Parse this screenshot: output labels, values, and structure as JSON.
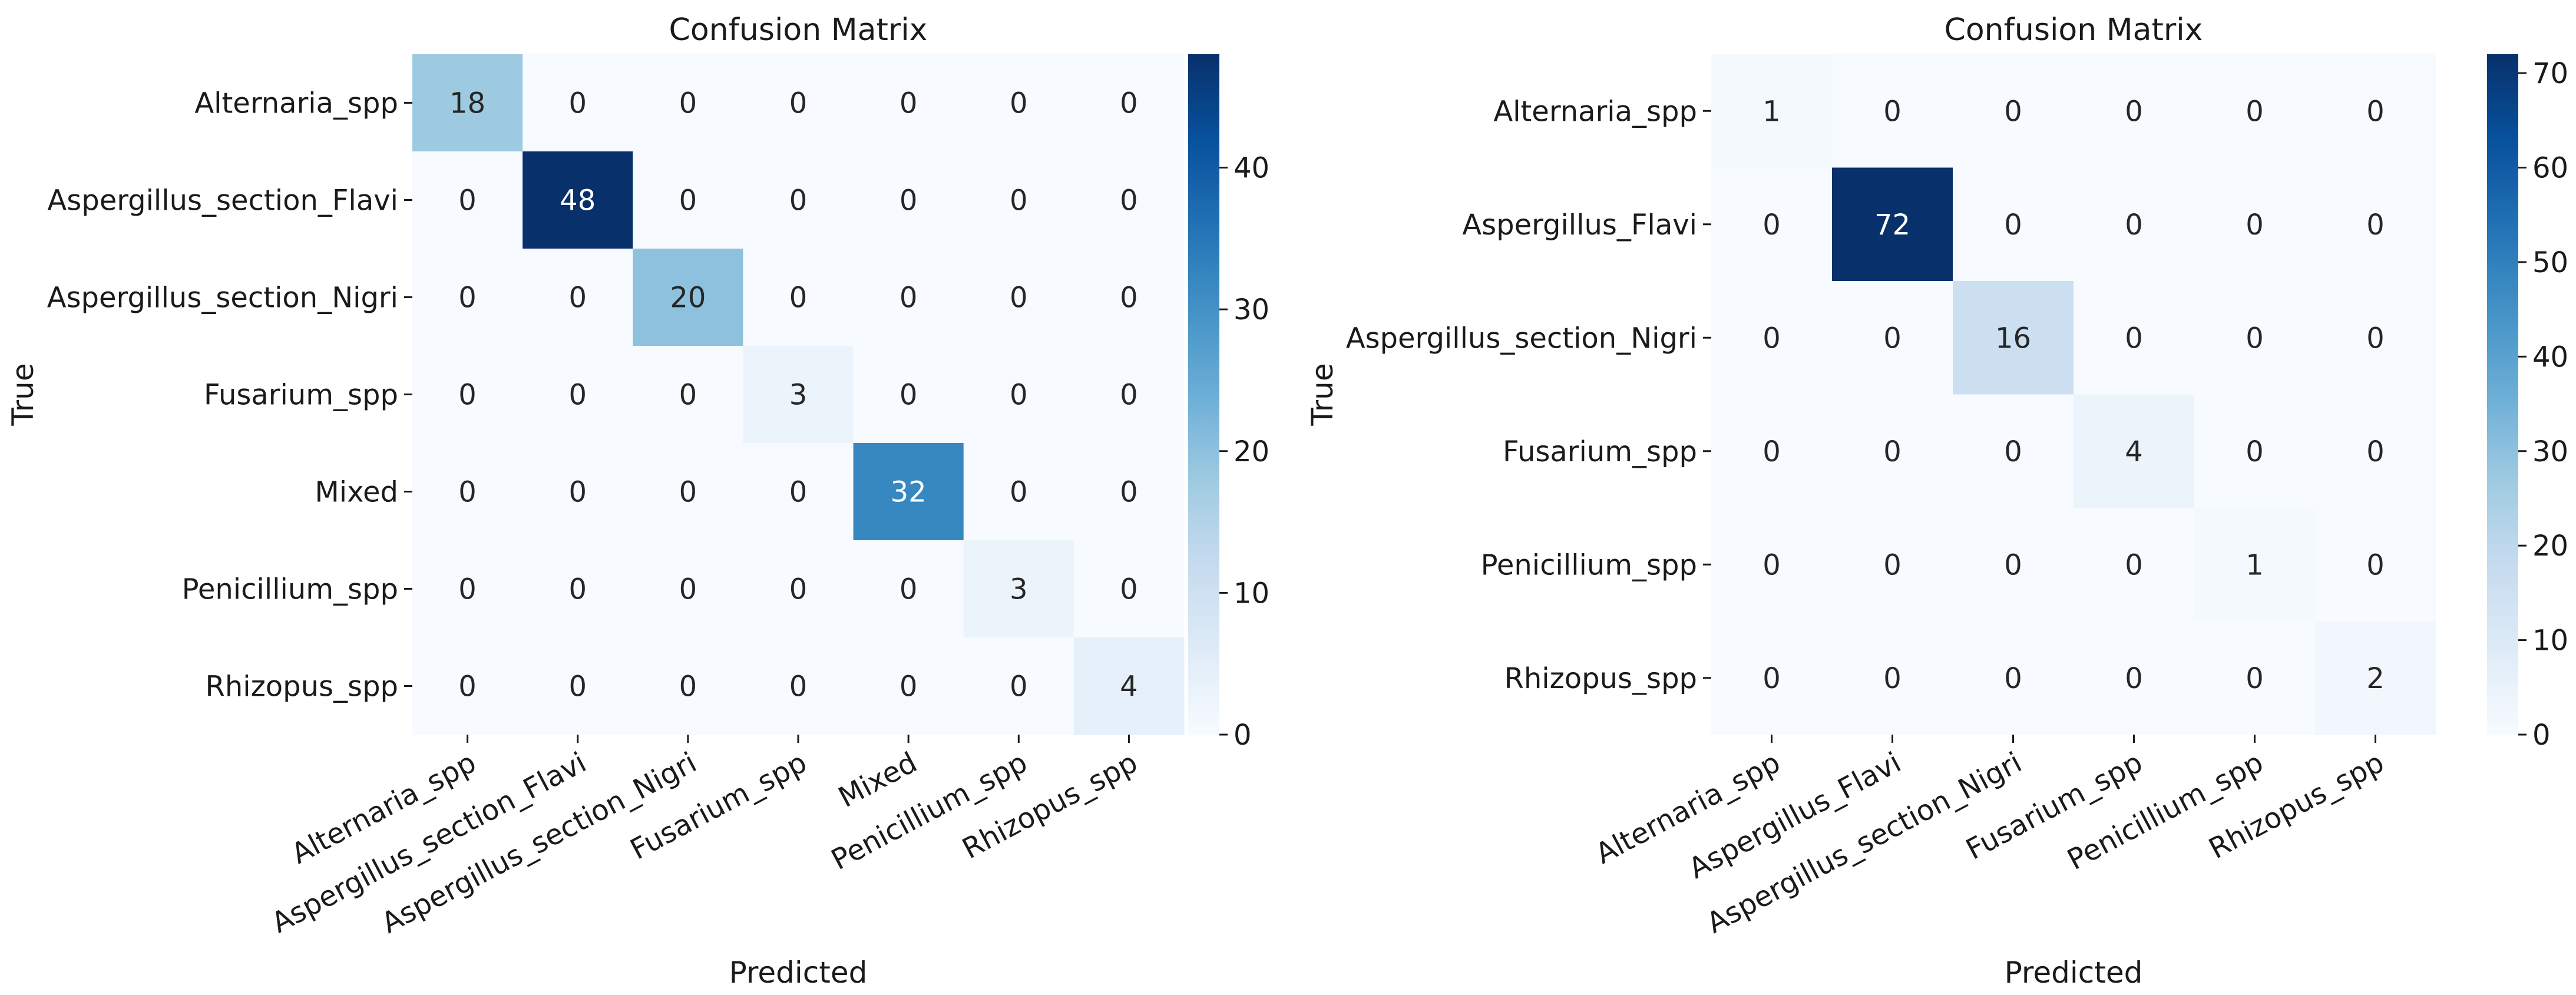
{
  "chart_data": [
    {
      "type": "heatmap",
      "title": "Confusion Matrix",
      "xlabel": "Predicted",
      "ylabel": "True",
      "x_categories": [
        "Alternaria_spp",
        "Aspergillus_section_Flavi",
        "Aspergillus_section_Nigri",
        "Fusarium_spp",
        "Mixed",
        "Penicillium_spp",
        "Rhizopus_spp"
      ],
      "y_categories": [
        "Alternaria_spp",
        "Aspergillus_section_Flavi",
        "Aspergillus_section_Nigri",
        "Fusarium_spp",
        "Mixed",
        "Penicillium_spp",
        "Rhizopus_spp"
      ],
      "values": [
        [
          18,
          0,
          0,
          0,
          0,
          0,
          0
        ],
        [
          0,
          48,
          0,
          0,
          0,
          0,
          0
        ],
        [
          0,
          0,
          20,
          0,
          0,
          0,
          0
        ],
        [
          0,
          0,
          0,
          3,
          0,
          0,
          0
        ],
        [
          0,
          0,
          0,
          0,
          32,
          0,
          0
        ],
        [
          0,
          0,
          0,
          0,
          0,
          3,
          0
        ],
        [
          0,
          0,
          0,
          0,
          0,
          0,
          4
        ]
      ],
      "colormap": "Blues",
      "colorbar": {
        "min": 0,
        "max": 48,
        "ticks": [
          0,
          10,
          20,
          30,
          40
        ]
      }
    },
    {
      "type": "heatmap",
      "title": "Confusion Matrix",
      "xlabel": "Predicted",
      "ylabel": "True",
      "x_categories": [
        "Alternaria_spp",
        "Aspergillus_Flavi",
        "Aspergillus_section_Nigri",
        "Fusarium_spp",
        "Penicillium_spp",
        "Rhizopus_spp"
      ],
      "y_categories": [
        "Alternaria_spp",
        "Aspergillus_Flavi",
        "Aspergillus_section_Nigri",
        "Fusarium_spp",
        "Penicillium_spp",
        "Rhizopus_spp"
      ],
      "values": [
        [
          1,
          0,
          0,
          0,
          0,
          0
        ],
        [
          0,
          72,
          0,
          0,
          0,
          0
        ],
        [
          0,
          0,
          16,
          0,
          0,
          0
        ],
        [
          0,
          0,
          0,
          4,
          0,
          0
        ],
        [
          0,
          0,
          0,
          0,
          1,
          0
        ],
        [
          0,
          0,
          0,
          0,
          0,
          2
        ]
      ],
      "colormap": "Blues",
      "colorbar": {
        "min": 0,
        "max": 72,
        "ticks": [
          0,
          10,
          20,
          30,
          40,
          50,
          60,
          70
        ]
      }
    }
  ]
}
